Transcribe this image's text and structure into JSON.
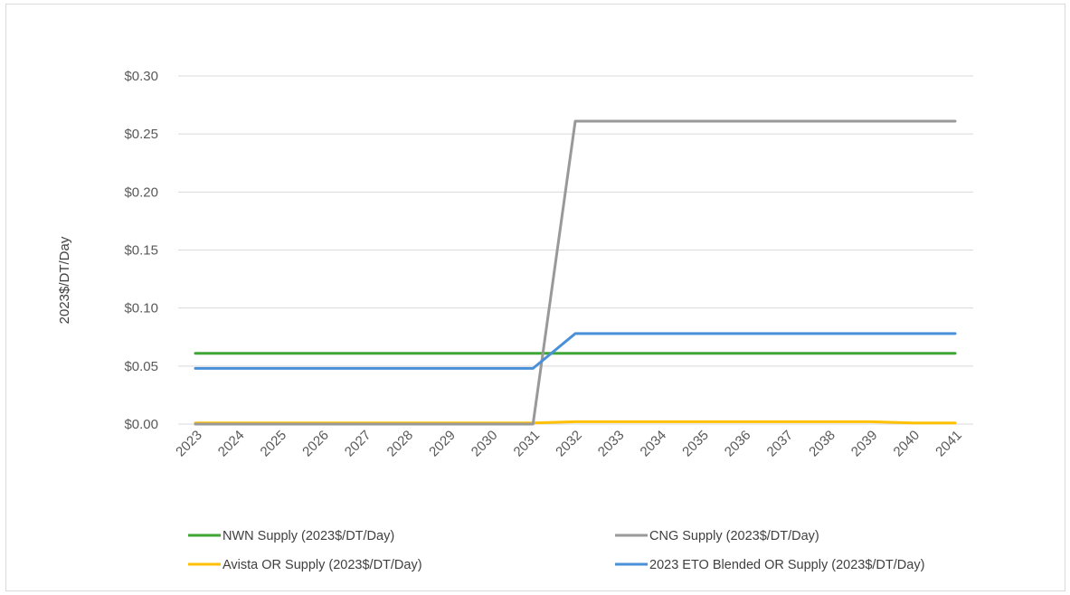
{
  "chart_data": {
    "type": "line",
    "title": "",
    "xlabel": "",
    "ylabel": "2023$/DT/Day",
    "categories": [
      "2023",
      "2024",
      "2025",
      "2026",
      "2027",
      "2028",
      "2029",
      "2030",
      "2031",
      "2032",
      "2033",
      "2034",
      "2035",
      "2036",
      "2037",
      "2038",
      "2039",
      "2040",
      "2041"
    ],
    "ylim": [
      0,
      0.3
    ],
    "yticks": [
      0,
      0.05,
      0.1,
      0.15,
      0.2,
      0.25,
      0.3
    ],
    "ytick_labels": [
      "$0.00",
      "$0.05",
      "$0.10",
      "$0.15",
      "$0.20",
      "$0.25",
      "$0.30"
    ],
    "grid": true,
    "legend_position": "bottom",
    "series": [
      {
        "name": "NWN Supply (2023$/DT/Day)",
        "color": "#3fa535",
        "values": [
          0.061,
          0.061,
          0.061,
          0.061,
          0.061,
          0.061,
          0.061,
          0.061,
          0.061,
          0.061,
          0.061,
          0.061,
          0.061,
          0.061,
          0.061,
          0.061,
          0.061,
          0.061,
          0.061
        ]
      },
      {
        "name": "CNG Supply (2023$/DT/Day)",
        "color": "#999999",
        "values": [
          0,
          0,
          0,
          0,
          0,
          0,
          0,
          0,
          0,
          0.261,
          0.261,
          0.261,
          0.261,
          0.261,
          0.261,
          0.261,
          0.261,
          0.261,
          0.261
        ]
      },
      {
        "name": "Avista OR Supply (2023$/DT/Day)",
        "color": "#ffc000",
        "values": [
          0.001,
          0.001,
          0.001,
          0.001,
          0.001,
          0.001,
          0.001,
          0.001,
          0.001,
          0.002,
          0.002,
          0.002,
          0.002,
          0.002,
          0.002,
          0.002,
          0.002,
          0.001,
          0.001
        ]
      },
      {
        "name": "2023 ETO Blended OR Supply (2023$/DT/Day)",
        "color": "#4a90d9",
        "values": [
          0.048,
          0.048,
          0.048,
          0.048,
          0.048,
          0.048,
          0.048,
          0.048,
          0.048,
          0.078,
          0.078,
          0.078,
          0.078,
          0.078,
          0.078,
          0.078,
          0.078,
          0.078,
          0.078
        ]
      }
    ]
  }
}
